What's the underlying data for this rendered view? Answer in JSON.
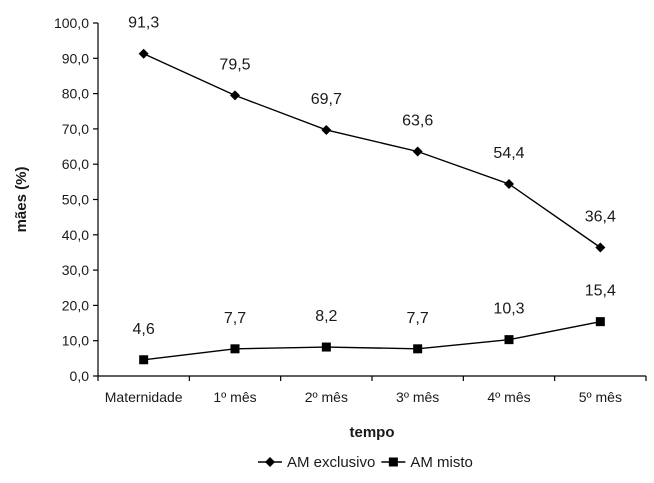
{
  "chart_data": {
    "type": "line",
    "categories": [
      "Maternidade",
      "1º mês",
      "2º mês",
      "3º mês",
      "4º mês",
      "5º mês"
    ],
    "series": [
      {
        "name": "AM exclusivo",
        "values": [
          91.3,
          79.5,
          69.7,
          63.6,
          54.4,
          36.4
        ],
        "marker": "diamond",
        "labels": [
          "91,3",
          "79,5",
          "69,7",
          "63,6",
          "54,4",
          "36,4"
        ]
      },
      {
        "name": "AM misto",
        "values": [
          4.6,
          7.7,
          8.2,
          7.7,
          10.3,
          15.4
        ],
        "marker": "square",
        "labels": [
          "4,6",
          "7,7",
          "8,2",
          "7,7",
          "10,3",
          "15,4"
        ]
      }
    ],
    "xlabel": "tempo",
    "ylabel": "mães (%)",
    "ylim": [
      0,
      100
    ],
    "yticks": [
      0,
      10,
      20,
      30,
      40,
      50,
      60,
      70,
      80,
      90,
      100
    ],
    "ytick_labels": [
      "0,0",
      "10,0",
      "20,0",
      "30,0",
      "40,0",
      "50,0",
      "60,0",
      "70,0",
      "80,0",
      "90,0",
      "100,0"
    ],
    "grid": false,
    "legend_position": "bottom",
    "colors": {
      "line": "#000000",
      "text": "#1a1a1a"
    }
  }
}
